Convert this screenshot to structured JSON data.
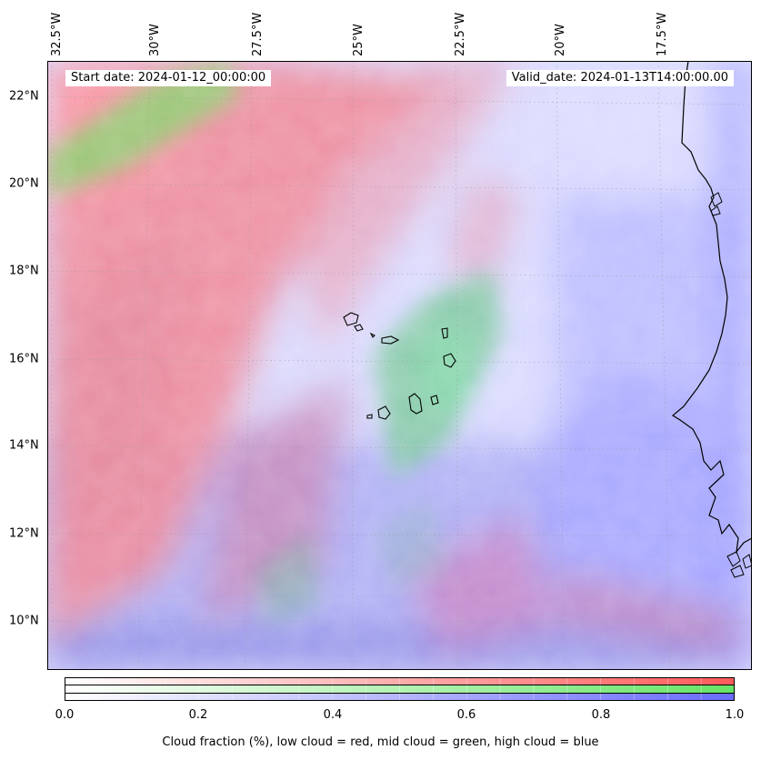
{
  "map": {
    "lon_labels": [
      "32.5°W",
      "30°W",
      "27.5°W",
      "25°W",
      "22.5°W",
      "20°W",
      "17.5°W"
    ],
    "lat_labels": [
      "22°N",
      "20°N",
      "18°N",
      "16°N",
      "14°N",
      "12°N",
      "10°N"
    ],
    "start_date": "Start date: 2024-01-12_00:00:00",
    "valid_date": "Valid_date: 2024-01-13T14:00:00.00",
    "colors": {
      "low_cloud": "#ff5a5a",
      "mid_cloud": "#4fd24f",
      "high_cloud": "#6a6aff",
      "coastline": "#000000"
    }
  },
  "colorbar": {
    "ticks": [
      "0.0",
      "0.2",
      "0.4",
      "0.6",
      "0.8",
      "1.0"
    ],
    "label": "Cloud fraction (%), low cloud = red, mid cloud = green, high cloud = blue",
    "rows": [
      "low-cloud",
      "mid-cloud",
      "high-cloud"
    ]
  }
}
